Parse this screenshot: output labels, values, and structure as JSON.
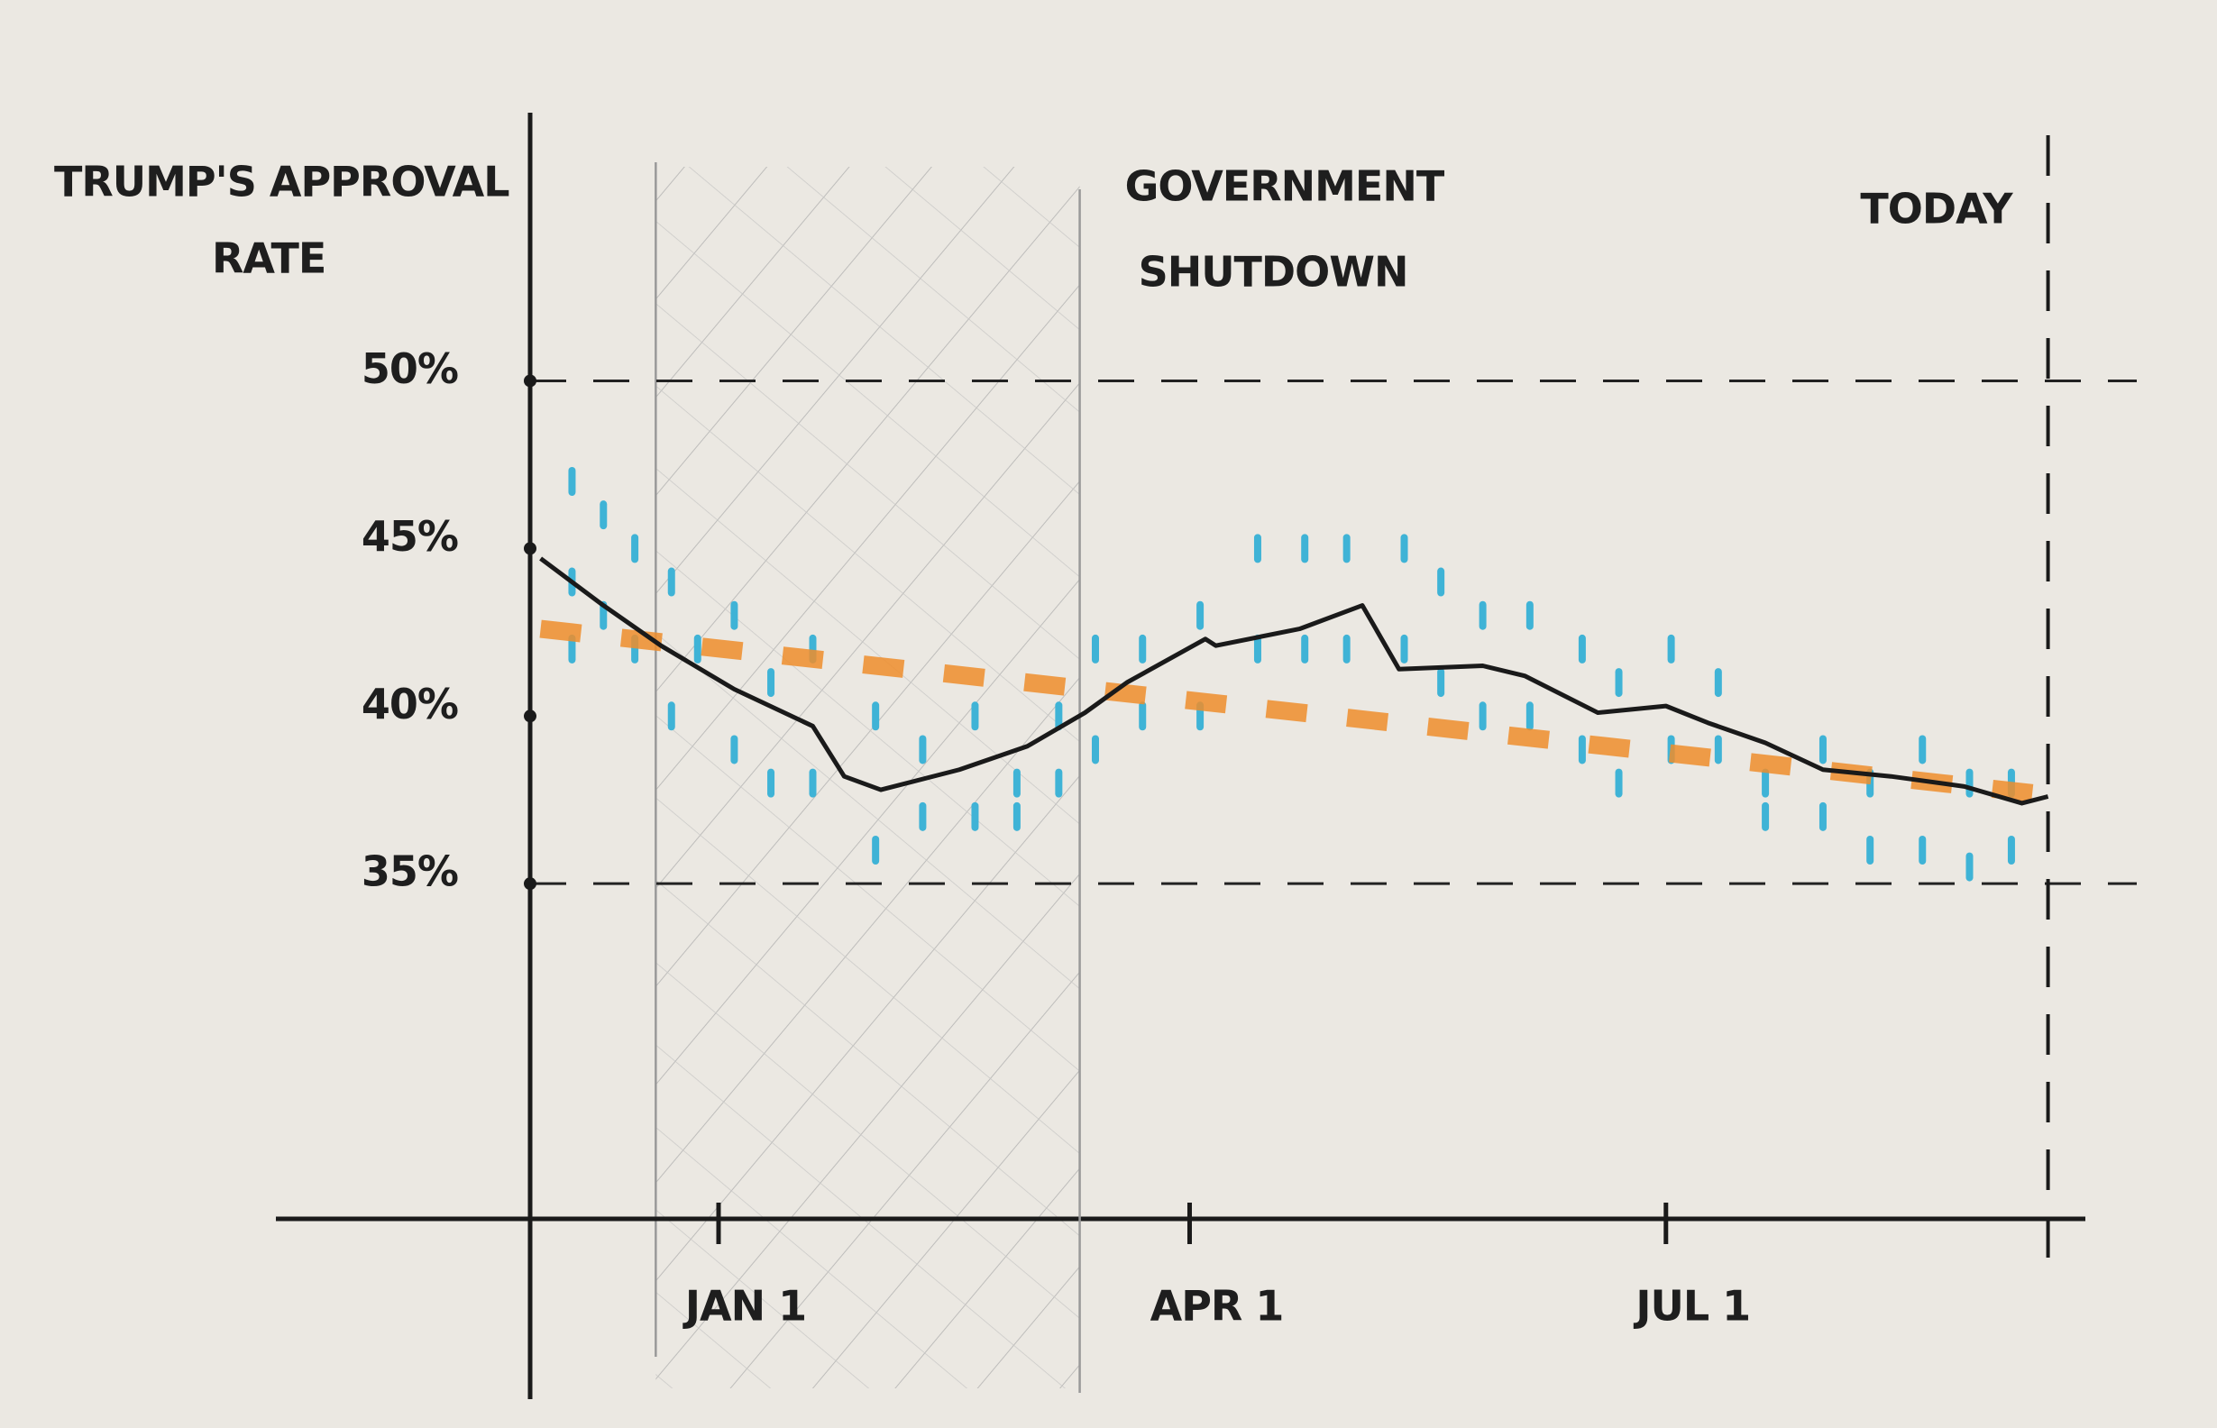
{
  "chart_data": {
    "type": "line",
    "y_label": [
      "TRUMP'S APPROVAL",
      "RATE"
    ],
    "xlim": [
      -36,
      257
    ],
    "ylim": [
      25,
      58
    ],
    "xticks": [
      {
        "value": 0,
        "label": "JAN 1"
      },
      {
        "value": 90,
        "label": "APR 1"
      },
      {
        "value": 181,
        "label": "JUL 1"
      }
    ],
    "yticks": [
      {
        "value": 50,
        "label": "50%"
      },
      {
        "value": 45,
        "label": "45%"
      },
      {
        "value": 40,
        "label": "40%"
      },
      {
        "value": 35,
        "label": "35%"
      }
    ],
    "reference_lines": [
      50,
      35
    ],
    "shaded_range": [
      -12,
      69
    ],
    "annotations": [
      {
        "text": [
          "GOVERNMENT",
          "SHUTDOWN"
        ],
        "x": 69
      },
      {
        "text": [
          "TODAY"
        ],
        "x": 254
      }
    ],
    "series": [
      {
        "type": "scatter",
        "color": "#3fb3d6",
        "x": [
          -28,
          -28,
          -28,
          -22,
          -22,
          -16,
          -16,
          -9,
          -9,
          -4,
          3,
          3,
          10,
          10,
          18,
          18,
          30,
          30,
          39,
          39,
          49,
          49,
          57,
          57,
          65,
          65,
          72,
          72,
          81,
          81,
          92,
          92,
          103,
          103,
          112,
          112,
          120,
          120,
          131,
          131,
          138,
          138,
          146,
          146,
          155,
          155,
          165,
          165,
          172,
          172,
          182,
          182,
          191,
          191,
          200,
          200,
          211,
          211,
          220,
          220,
          230,
          230,
          239,
          239,
          247,
          247
        ],
        "values": [
          47,
          44,
          42,
          46,
          43,
          45,
          42,
          44,
          40,
          42,
          43,
          39,
          41,
          38,
          42,
          38,
          40,
          36,
          39,
          37,
          40,
          37,
          38,
          37,
          40,
          38,
          42,
          39,
          42,
          40,
          43,
          40,
          45,
          42,
          45,
          42,
          45,
          42,
          45,
          42,
          44,
          41,
          43,
          40,
          43,
          40,
          42,
          39,
          41,
          38,
          42,
          39,
          41,
          39,
          38,
          37,
          39,
          37,
          38,
          36,
          39,
          36,
          38,
          35.5,
          38,
          36
        ]
      },
      {
        "type": "line",
        "color": "#ef8d2c",
        "dashed": true,
        "x": [
          -34,
          251
        ],
        "values": [
          42.6,
          37.7
        ]
      },
      {
        "type": "line",
        "color": "#1a1a1a",
        "x": [
          -34,
          -22,
          -11,
          3,
          18,
          24,
          31,
          46,
          59,
          70,
          78,
          93,
          95,
          111,
          123,
          130,
          146,
          154,
          168,
          181,
          189,
          200,
          211,
          224,
          238,
          249,
          254
        ],
        "values": [
          44.7,
          43.3,
          42.1,
          40.8,
          39.7,
          38.2,
          37.8,
          38.4,
          39.1,
          40.1,
          41.0,
          42.3,
          42.1,
          42.6,
          43.3,
          41.4,
          41.5,
          41.2,
          40.1,
          40.3,
          39.8,
          39.2,
          38.4,
          38.2,
          37.9,
          37.4,
          37.6
        ]
      }
    ]
  }
}
